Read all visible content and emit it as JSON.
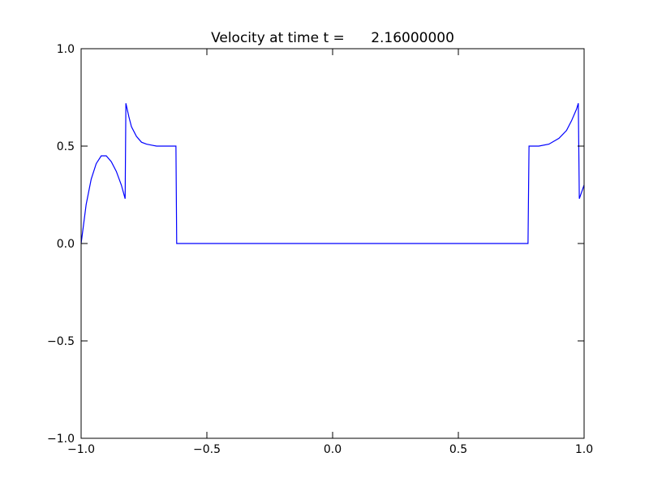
{
  "chart_data": {
    "type": "line",
    "title": "Velocity at time t =      2.16000000",
    "x": [
      -1.0,
      -0.98,
      -0.96,
      -0.94,
      -0.92,
      -0.9,
      -0.88,
      -0.86,
      -0.84,
      -0.825,
      -0.822,
      -0.81,
      -0.8,
      -0.78,
      -0.76,
      -0.74,
      -0.72,
      -0.7,
      -0.623,
      -0.62,
      0.777,
      0.781,
      0.82,
      0.86,
      0.9,
      0.93,
      0.95,
      0.97,
      0.977,
      0.981,
      1.0
    ],
    "series": [
      {
        "color": "#0000ff",
        "values": [
          0.0,
          0.2,
          0.33,
          0.41,
          0.45,
          0.45,
          0.42,
          0.37,
          0.3,
          0.23,
          0.72,
          0.65,
          0.6,
          0.55,
          0.52,
          0.51,
          0.505,
          0.5,
          0.5,
          0.0,
          0.0,
          0.5,
          0.5,
          0.51,
          0.54,
          0.58,
          0.63,
          0.69,
          0.72,
          0.23,
          0.3
        ]
      }
    ],
    "xlim": [
      -1.0,
      1.0
    ],
    "ylim": [
      -1.0,
      1.0
    ],
    "xticks": [
      {
        "value": -1.0,
        "label": "−1.0"
      },
      {
        "value": -0.5,
        "label": "−0.5"
      },
      {
        "value": 0.0,
        "label": "0.0"
      },
      {
        "value": 0.5,
        "label": "0.5"
      },
      {
        "value": 1.0,
        "label": "1.0"
      }
    ],
    "yticks": [
      {
        "value": -1.0,
        "label": "−1.0"
      },
      {
        "value": -0.5,
        "label": "−0.5"
      },
      {
        "value": 0.0,
        "label": "0.0"
      },
      {
        "value": 0.5,
        "label": "0.5"
      },
      {
        "value": 1.0,
        "label": "1.0"
      }
    ]
  }
}
